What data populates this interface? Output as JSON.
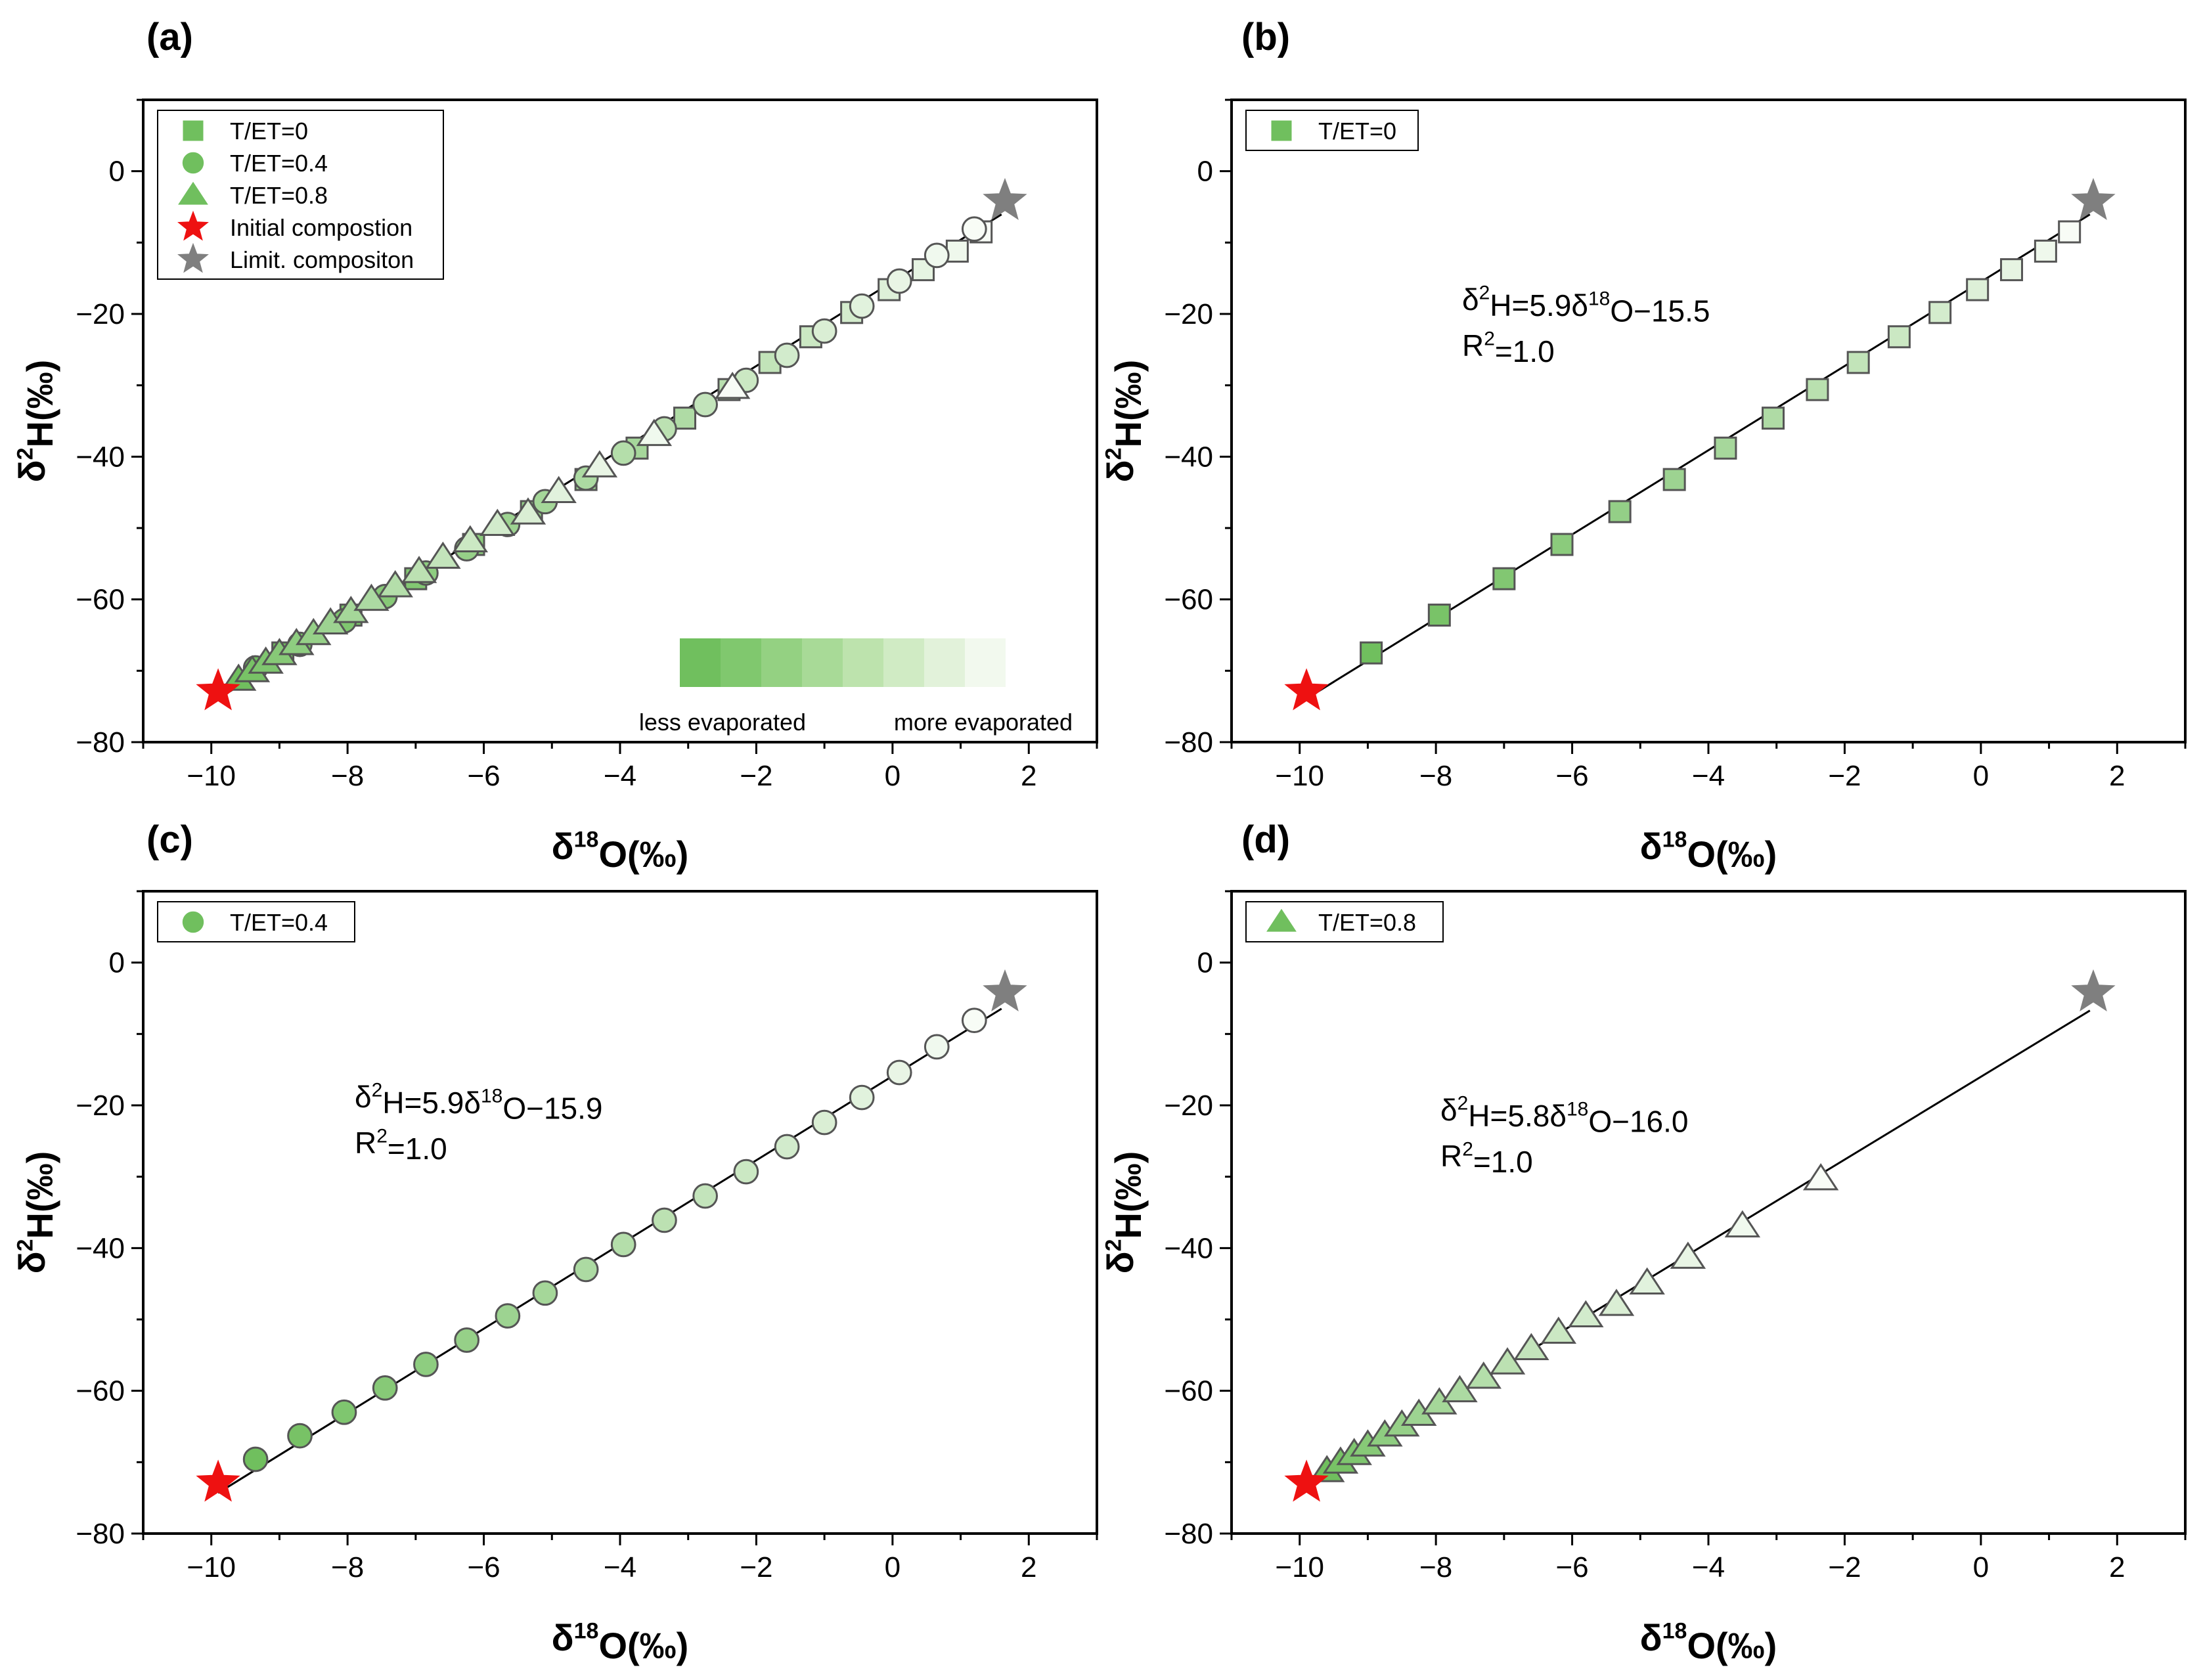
{
  "chart_data": [
    {
      "panel": "(a)",
      "type": "scatter",
      "xlabel": "δ18O(‰)",
      "ylabel": "δ2H(‰)",
      "xlim": [
        -11,
        3
      ],
      "ylim": [
        -80,
        10
      ],
      "xticks": [
        -10,
        -8,
        -6,
        -4,
        -2,
        0,
        2
      ],
      "yticks": [
        -80,
        -60,
        -40,
        -20,
        0
      ],
      "legend": [
        "T/ET=0",
        "T/ET=0.4",
        "T/ET=0.8",
        "Initial compostion",
        "Limit. compositon"
      ],
      "colorbar": {
        "left_label": "less evaporated",
        "right_label": "more evaporated",
        "colors": [
          "#70bf5e",
          "#80c86e",
          "#94d182",
          "#a8da97",
          "#bde3ad",
          "#d0ebc4",
          "#e2f2da",
          "#f2f9ee"
        ]
      },
      "fit": {
        "slope": 5.9,
        "intercept": -15.5,
        "x_range": [
          -9.9,
          1.6
        ]
      },
      "series": [
        {
          "name": "T/ET=0",
          "marker": "square",
          "x": [
            -8.95,
            -7.95,
            -7.0,
            -6.15,
            -5.3,
            -4.5,
            -3.75,
            -3.05,
            -2.4,
            -1.8,
            -1.2,
            -0.6,
            -0.05,
            0.45,
            0.95,
            1.3
          ],
          "y": [
            -67.5,
            -62.2,
            -57.1,
            -52.3,
            -47.7,
            -43.2,
            -38.8,
            -34.6,
            -30.6,
            -26.8,
            -23.2,
            -19.8,
            -16.6,
            -13.8,
            -11.2,
            -8.5
          ]
        },
        {
          "name": "T/ET=0.4",
          "marker": "circle",
          "x": [
            -9.35,
            -8.7,
            -8.05,
            -7.45,
            -6.85,
            -6.25,
            -5.65,
            -5.1,
            -4.5,
            -3.95,
            -3.35,
            -2.75,
            -2.15,
            -1.55,
            -1.0,
            -0.45,
            0.1,
            0.65,
            1.2
          ],
          "y": [
            -69.6,
            -66.3,
            -63.0,
            -59.6,
            -56.3,
            -52.9,
            -49.5,
            -46.3,
            -43.0,
            -39.5,
            -36.1,
            -32.7,
            -29.3,
            -25.8,
            -22.4,
            -18.9,
            -15.4,
            -11.8,
            -8.1
          ]
        },
        {
          "name": "T/ET=0.8",
          "marker": "triangle",
          "x": [
            -9.6,
            -9.4,
            -9.2,
            -9.0,
            -8.75,
            -8.5,
            -8.25,
            -7.95,
            -7.65,
            -7.3,
            -6.95,
            -6.6,
            -6.2,
            -5.8,
            -5.35,
            -4.9,
            -4.3,
            -3.5,
            -2.35
          ],
          "y": [
            -71.2,
            -70.0,
            -68.8,
            -67.6,
            -66.2,
            -64.8,
            -63.3,
            -61.7,
            -60.0,
            -58.1,
            -56.1,
            -54.1,
            -51.8,
            -49.5,
            -47.9,
            -44.9,
            -41.3,
            -36.9,
            -30.3
          ]
        },
        {
          "name": "Initial compostion",
          "marker": "star",
          "color": "#ee1111",
          "x": [
            -9.9
          ],
          "y": [
            -72.9
          ]
        },
        {
          "name": "Limit. compositon",
          "marker": "star",
          "color": "#7f7f7f",
          "x": [
            1.65
          ],
          "y": [
            -4.2
          ]
        }
      ]
    },
    {
      "panel": "(b)",
      "type": "scatter",
      "xlabel": "δ18O(‰)",
      "ylabel": "δ2H(‰)",
      "xlim": [
        -11,
        3
      ],
      "ylim": [
        -80,
        10
      ],
      "xticks": [
        -10,
        -8,
        -6,
        -4,
        -2,
        0,
        2
      ],
      "yticks": [
        -80,
        -60,
        -40,
        -20,
        0
      ],
      "legend": [
        "T/ET=0"
      ],
      "equation": {
        "line1": "δ2H=5.9δ18O−15.5",
        "line2": "R2=1.0"
      },
      "fit": {
        "slope": 5.9,
        "intercept": -15.5,
        "x_range": [
          -9.9,
          1.6
        ]
      },
      "series": [
        {
          "name": "T/ET=0",
          "marker": "square",
          "x": [
            -8.95,
            -7.95,
            -7.0,
            -6.15,
            -5.3,
            -4.5,
            -3.75,
            -3.05,
            -2.4,
            -1.8,
            -1.2,
            -0.6,
            -0.05,
            0.45,
            0.95,
            1.3
          ],
          "y": [
            -67.5,
            -62.2,
            -57.1,
            -52.3,
            -47.7,
            -43.2,
            -38.8,
            -34.6,
            -30.6,
            -26.8,
            -23.2,
            -19.8,
            -16.6,
            -13.8,
            -11.2,
            -8.5
          ]
        },
        {
          "name": "Initial compostion",
          "marker": "star",
          "color": "#ee1111",
          "x": [
            -9.9
          ],
          "y": [
            -72.9
          ]
        },
        {
          "name": "Limit. compositon",
          "marker": "star",
          "color": "#7f7f7f",
          "x": [
            1.65
          ],
          "y": [
            -4.2
          ]
        }
      ]
    },
    {
      "panel": "(c)",
      "type": "scatter",
      "xlabel": "δ18O(‰)",
      "ylabel": "δ2H(‰)",
      "xlim": [
        -11,
        3
      ],
      "ylim": [
        -80,
        10
      ],
      "xticks": [
        -10,
        -8,
        -6,
        -4,
        -2,
        0,
        2
      ],
      "yticks": [
        -80,
        -60,
        -40,
        -20,
        0
      ],
      "legend": [
        "T/ET=0.4"
      ],
      "equation": {
        "line1": "δ2H=5.9δ18O−15.9",
        "line2": "R2=1.0"
      },
      "fit": {
        "slope": 5.9,
        "intercept": -15.9,
        "x_range": [
          -9.9,
          1.6
        ]
      },
      "series": [
        {
          "name": "T/ET=0.4",
          "marker": "circle",
          "x": [
            -9.35,
            -8.7,
            -8.05,
            -7.45,
            -6.85,
            -6.25,
            -5.65,
            -5.1,
            -4.5,
            -3.95,
            -3.35,
            -2.75,
            -2.15,
            -1.55,
            -1.0,
            -0.45,
            0.1,
            0.65,
            1.2
          ],
          "y": [
            -69.6,
            -66.3,
            -63.0,
            -59.6,
            -56.3,
            -52.9,
            -49.5,
            -46.3,
            -43.0,
            -39.5,
            -36.1,
            -32.7,
            -29.3,
            -25.8,
            -22.4,
            -18.9,
            -15.4,
            -11.8,
            -8.1
          ]
        },
        {
          "name": "Initial compostion",
          "marker": "star",
          "color": "#ee1111",
          "x": [
            -9.9
          ],
          "y": [
            -72.9
          ]
        },
        {
          "name": "Limit. compositon",
          "marker": "star",
          "color": "#7f7f7f",
          "x": [
            1.65
          ],
          "y": [
            -4.2
          ]
        }
      ]
    },
    {
      "panel": "(d)",
      "type": "scatter",
      "xlabel": "δ18O(‰)",
      "ylabel": "δ2H(‰)",
      "xlim": [
        -11,
        3
      ],
      "ylim": [
        -80,
        10
      ],
      "xticks": [
        -10,
        -8,
        -6,
        -4,
        -2,
        0,
        2
      ],
      "yticks": [
        -80,
        -60,
        -40,
        -20,
        0
      ],
      "legend": [
        "T/ET=0.8"
      ],
      "equation": {
        "line1": "δ2H=5.8δ18O−16.0",
        "line2": "R2=1.0"
      },
      "fit": {
        "slope": 5.8,
        "intercept": -16.0,
        "x_range": [
          -9.9,
          1.6
        ]
      },
      "series": [
        {
          "name": "T/ET=0.8",
          "marker": "triangle",
          "x": [
            -9.6,
            -9.4,
            -9.2,
            -9.0,
            -8.75,
            -8.5,
            -8.25,
            -7.95,
            -7.65,
            -7.3,
            -6.95,
            -6.6,
            -6.2,
            -5.8,
            -5.35,
            -4.9,
            -4.3,
            -3.5,
            -2.35
          ],
          "y": [
            -71.2,
            -70.0,
            -68.8,
            -67.6,
            -66.2,
            -64.8,
            -63.3,
            -61.7,
            -60.0,
            -58.1,
            -56.1,
            -54.1,
            -51.8,
            -49.5,
            -47.9,
            -44.9,
            -41.3,
            -36.9,
            -30.3
          ]
        },
        {
          "name": "Initial compostion",
          "marker": "star",
          "color": "#ee1111",
          "x": [
            -9.9
          ],
          "y": [
            -72.9
          ]
        },
        {
          "name": "Limit. compositon",
          "marker": "star",
          "color": "#7f7f7f",
          "x": [
            1.65
          ],
          "y": [
            -4.2
          ]
        }
      ]
    }
  ]
}
